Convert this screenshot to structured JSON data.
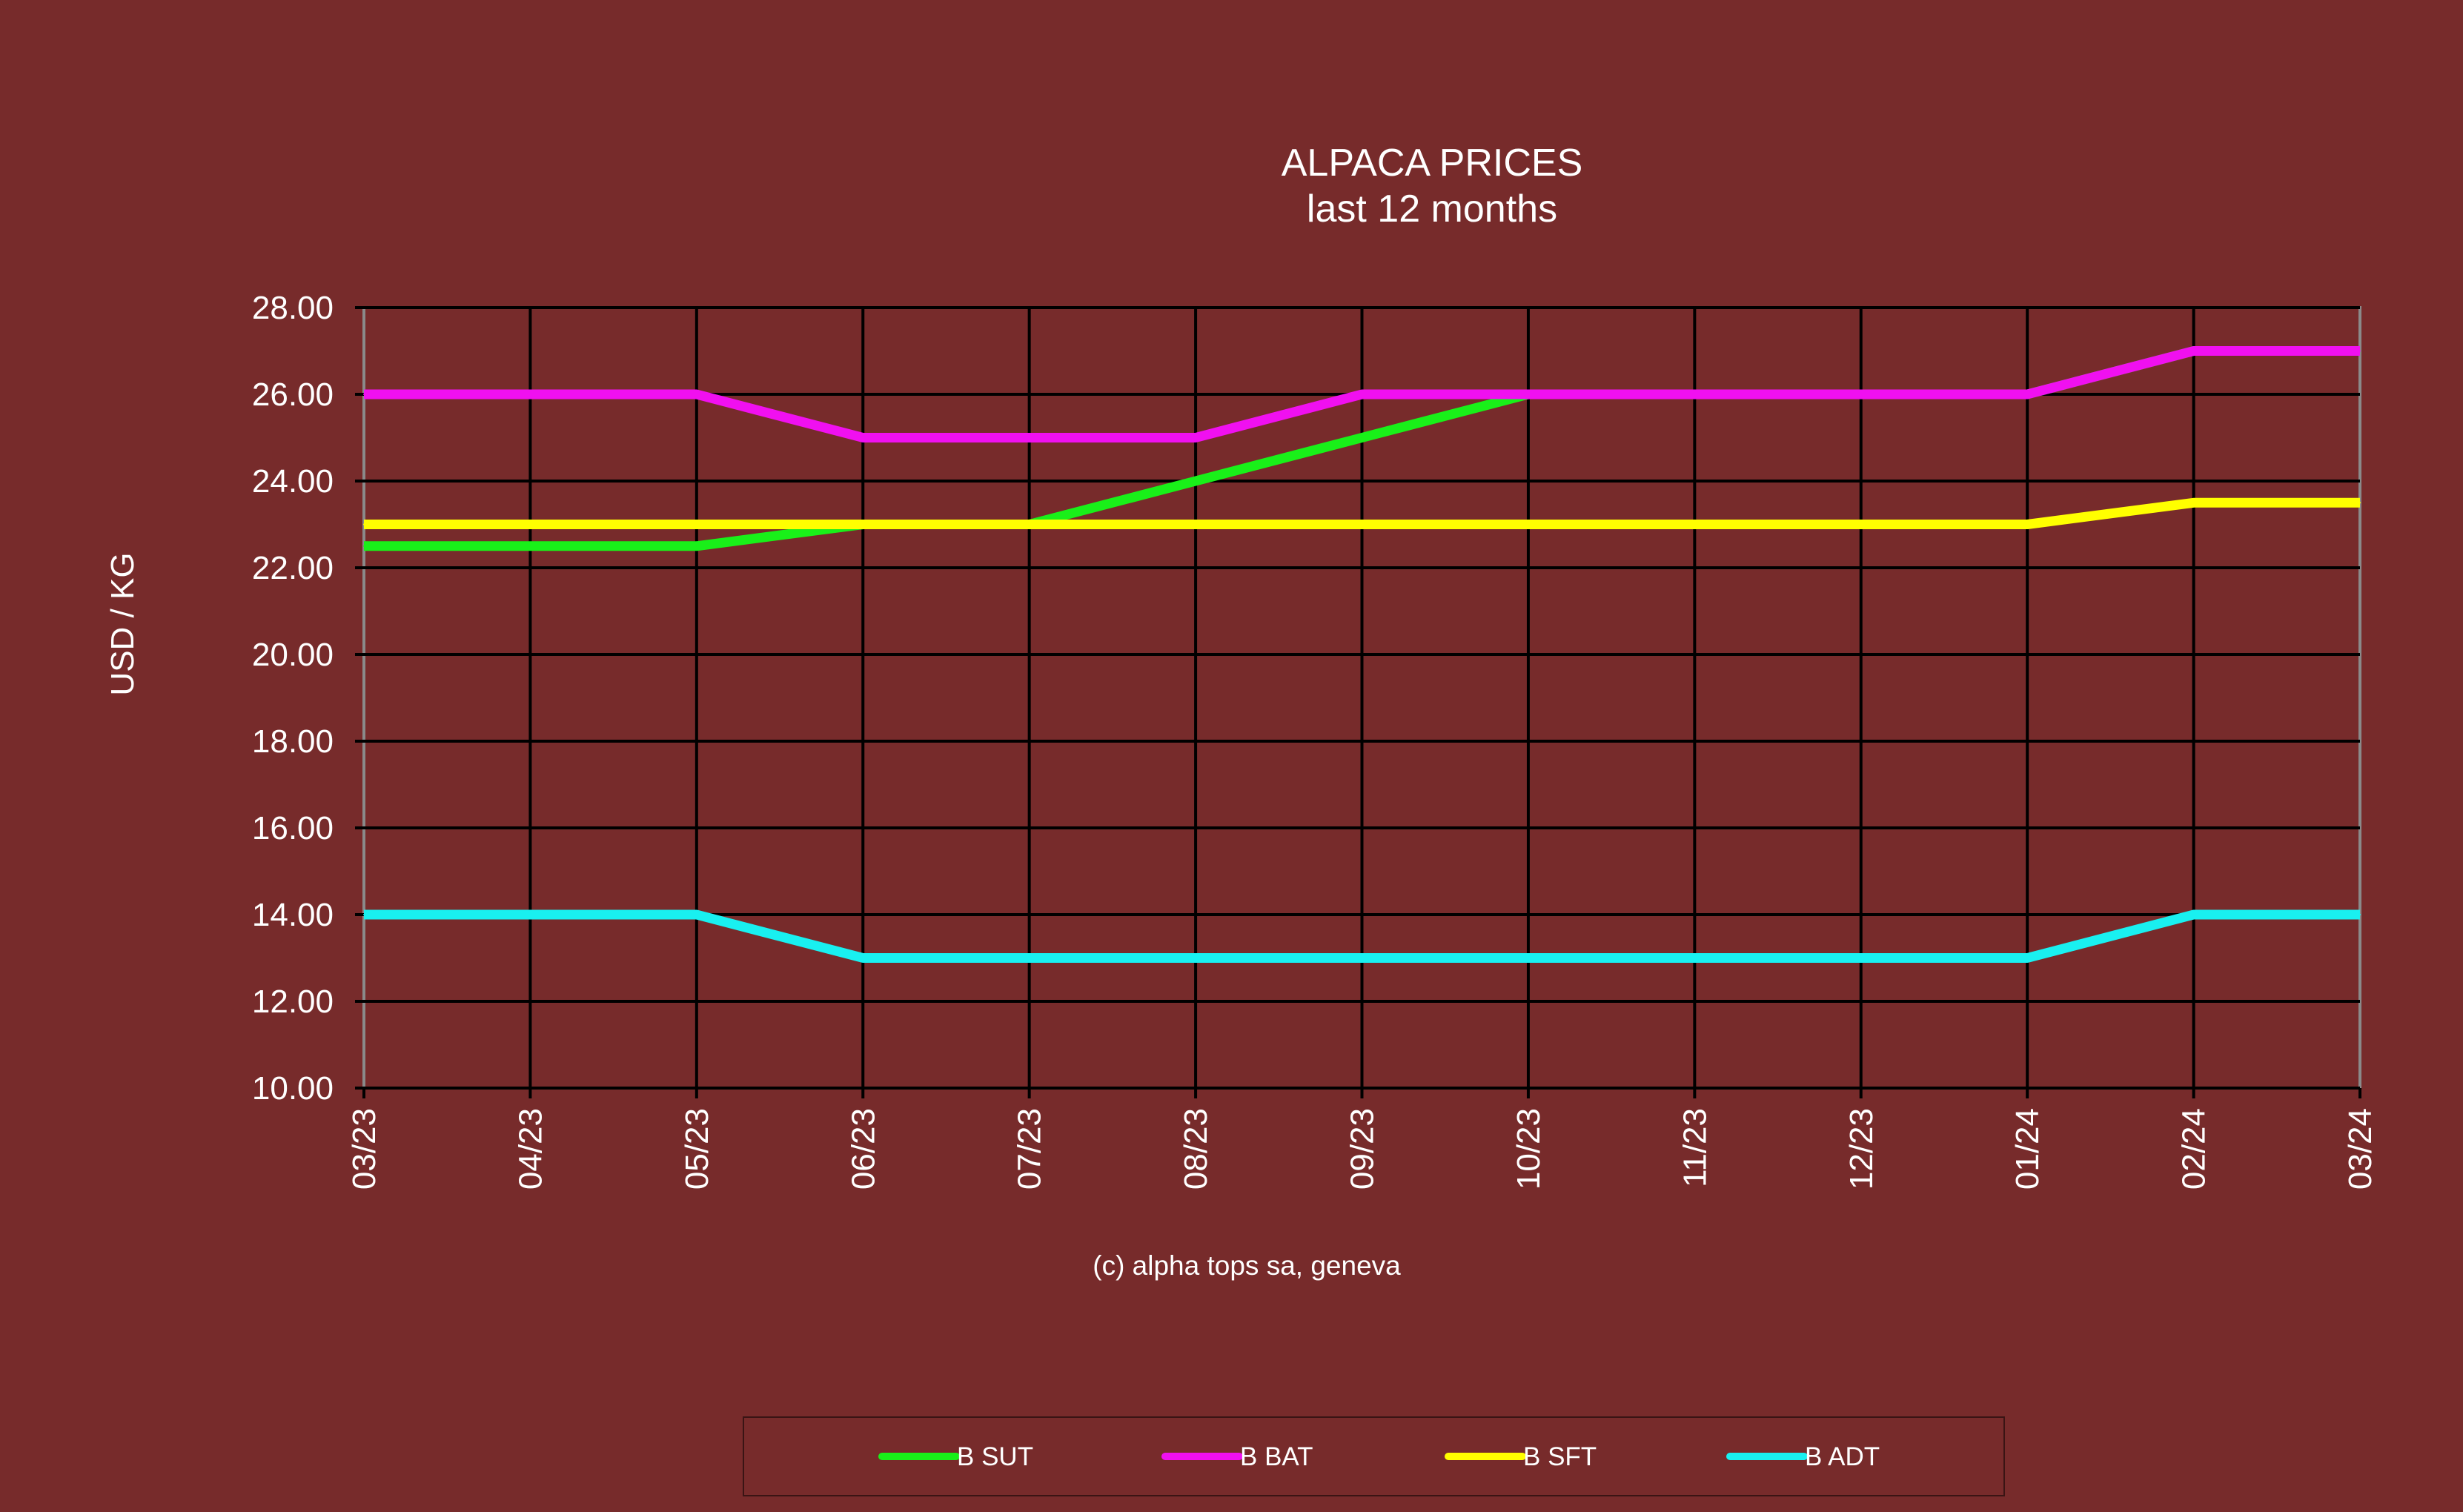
{
  "chart_data": {
    "type": "line",
    "title": "ALPACA PRICES",
    "subtitle": "last 12 months",
    "ylabel": "USD / KG",
    "xlabel": "",
    "footer": "(c) alpha tops sa, geneva",
    "categories": [
      "03/23",
      "04/23",
      "05/23",
      "06/23",
      "07/23",
      "08/23",
      "09/23",
      "10/23",
      "11/23",
      "12/23",
      "01/24",
      "02/24",
      "03/24"
    ],
    "ylim": [
      10,
      28
    ],
    "yticks": [
      "10.00",
      "12.00",
      "14.00",
      "16.00",
      "18.00",
      "20.00",
      "22.00",
      "24.00",
      "26.00",
      "28.00"
    ],
    "grid": true,
    "legend_position": "bottom",
    "series": [
      {
        "name": "B SUT",
        "color": "#19f019",
        "values": [
          22.5,
          22.5,
          22.5,
          23,
          23,
          24,
          25,
          26,
          26,
          26,
          26,
          27,
          27
        ]
      },
      {
        "name": "B BAT",
        "color": "#f010f0",
        "values": [
          26,
          26,
          26,
          25,
          25,
          25,
          26,
          26,
          26,
          26,
          26,
          27,
          27
        ]
      },
      {
        "name": "B SFT",
        "color": "#ffff00",
        "values": [
          23,
          23,
          23,
          23,
          23,
          23,
          23,
          23,
          23,
          23,
          23,
          23.5,
          23.5
        ]
      },
      {
        "name": "B ADT",
        "color": "#19f0f0",
        "values": [
          14,
          14,
          14,
          13,
          13,
          13,
          13,
          13,
          13,
          13,
          13,
          14,
          14
        ]
      }
    ]
  }
}
